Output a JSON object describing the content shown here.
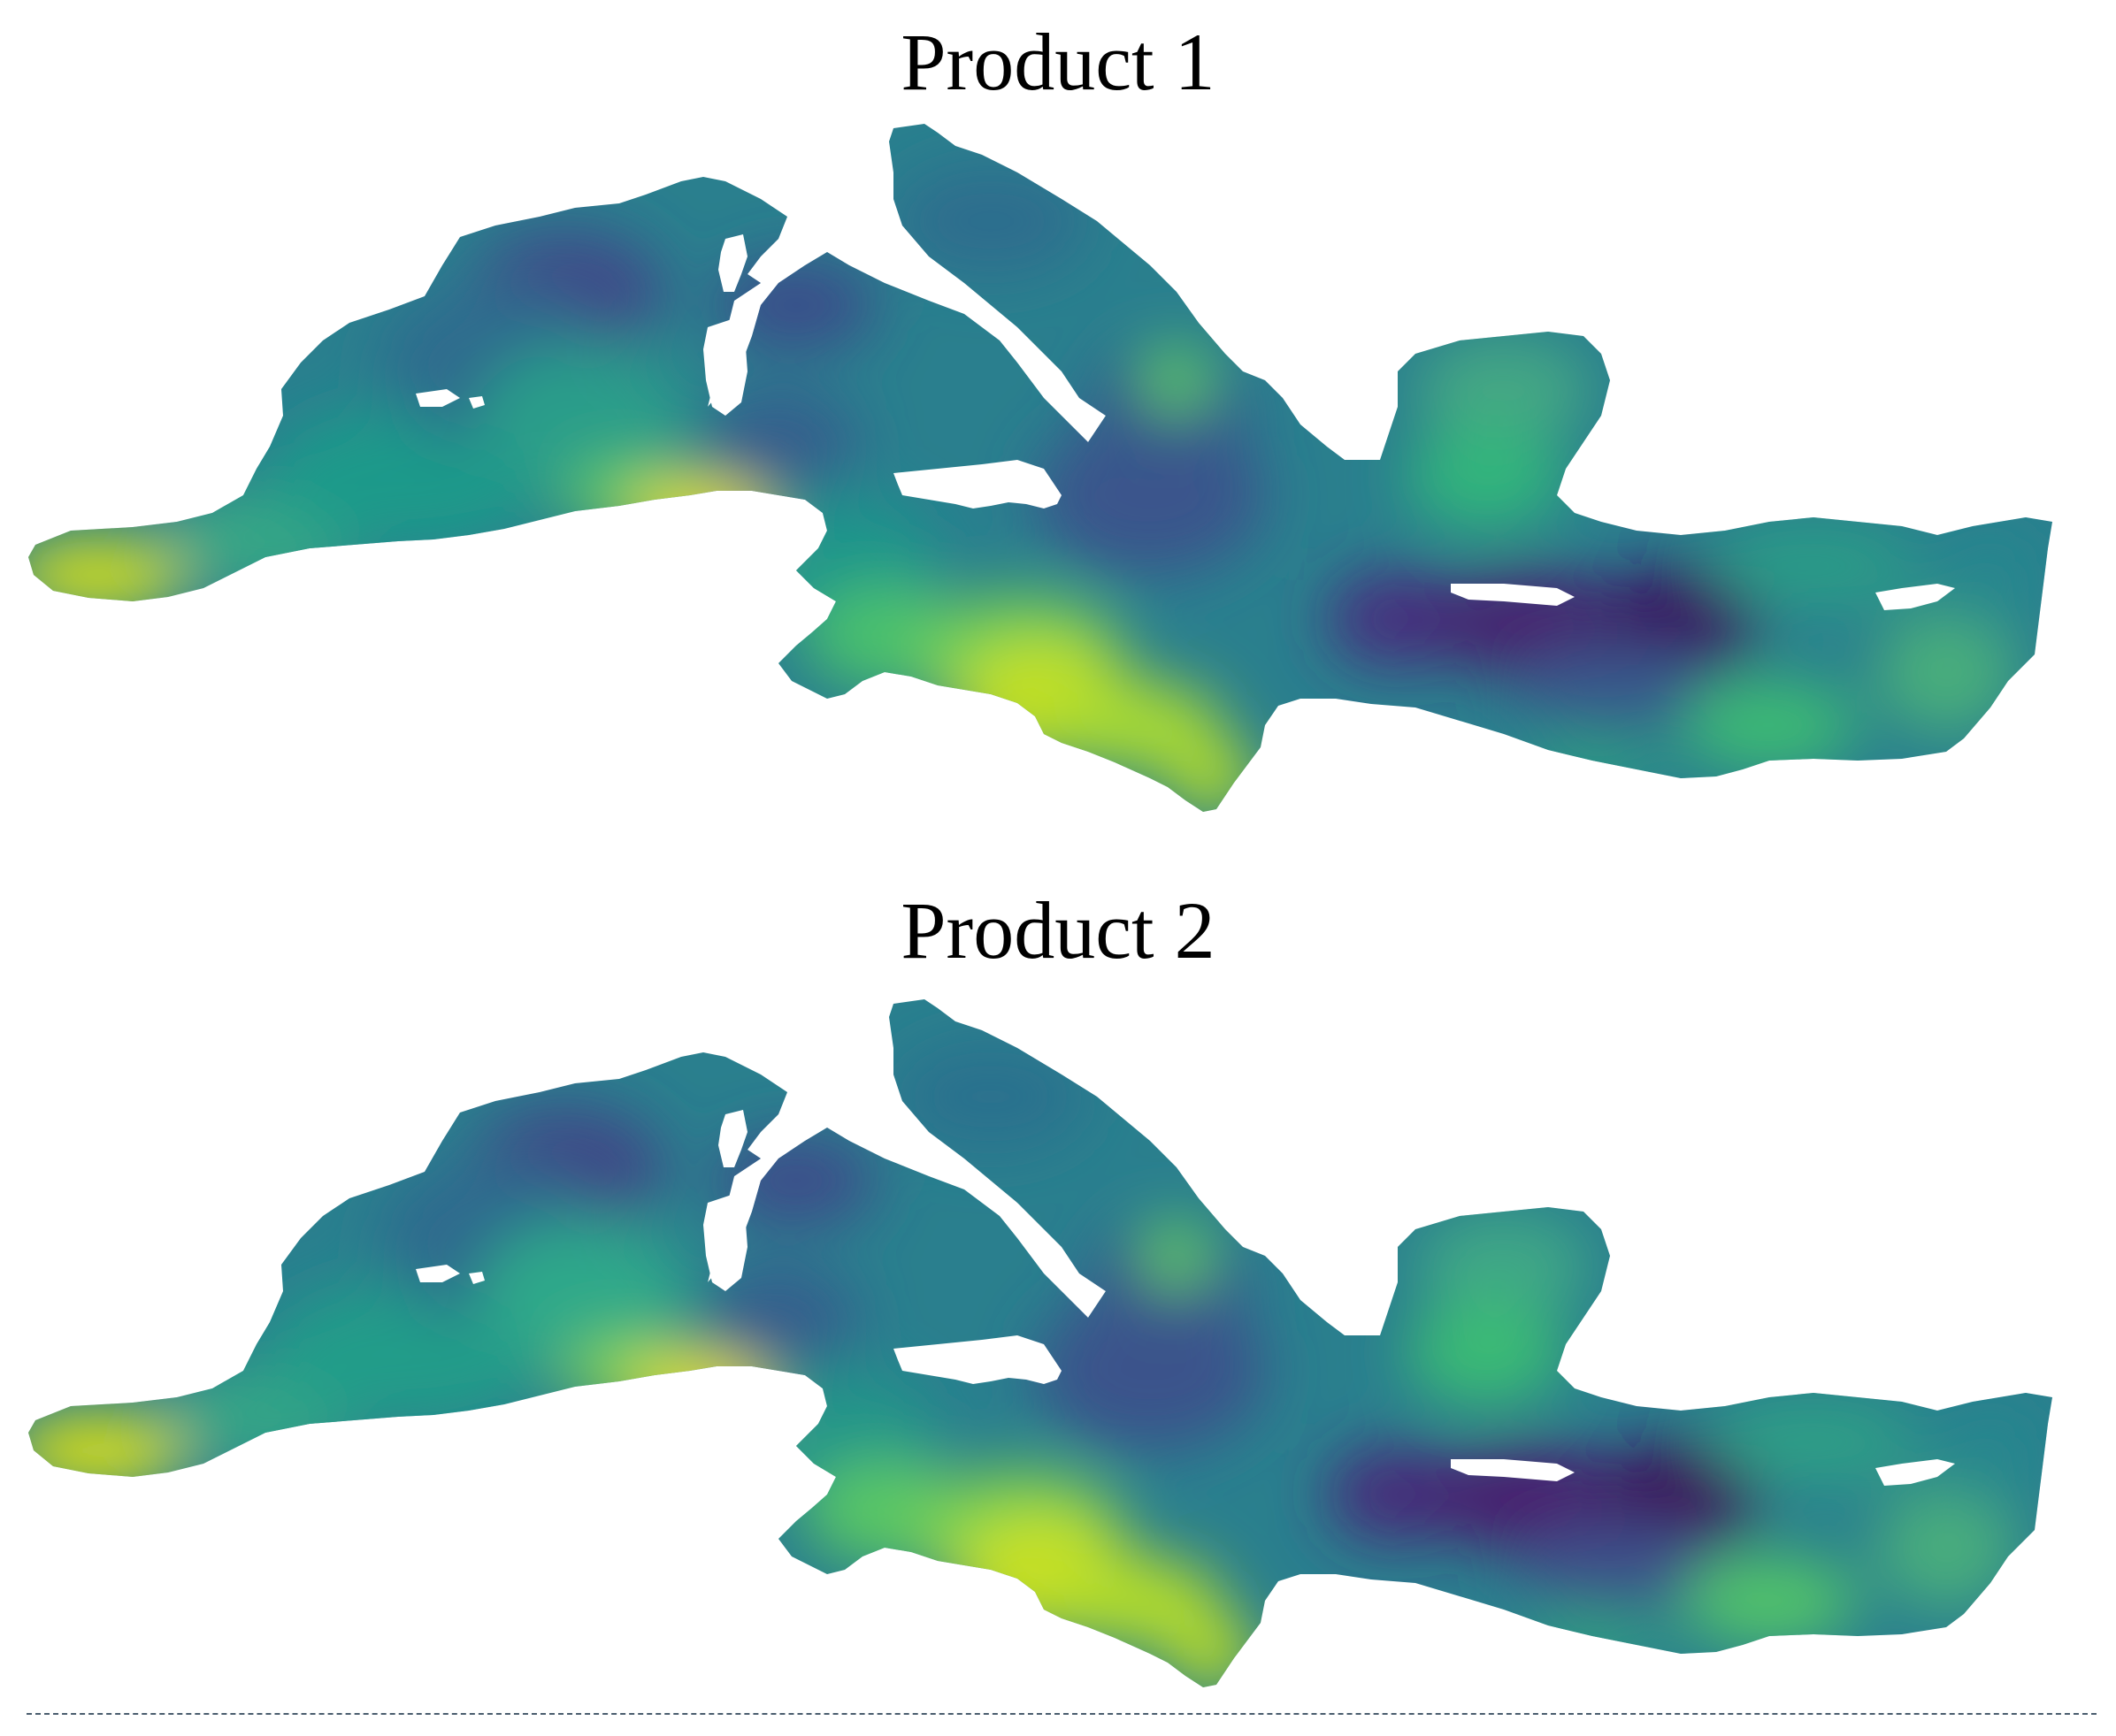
{
  "figure": {
    "panels": [
      {
        "title": "Product 1"
      },
      {
        "title": "Product 2"
      }
    ]
  },
  "colors": {
    "viridis": [
      "#440154",
      "#3b528b",
      "#21908d",
      "#5dc963",
      "#fde725"
    ]
  }
}
